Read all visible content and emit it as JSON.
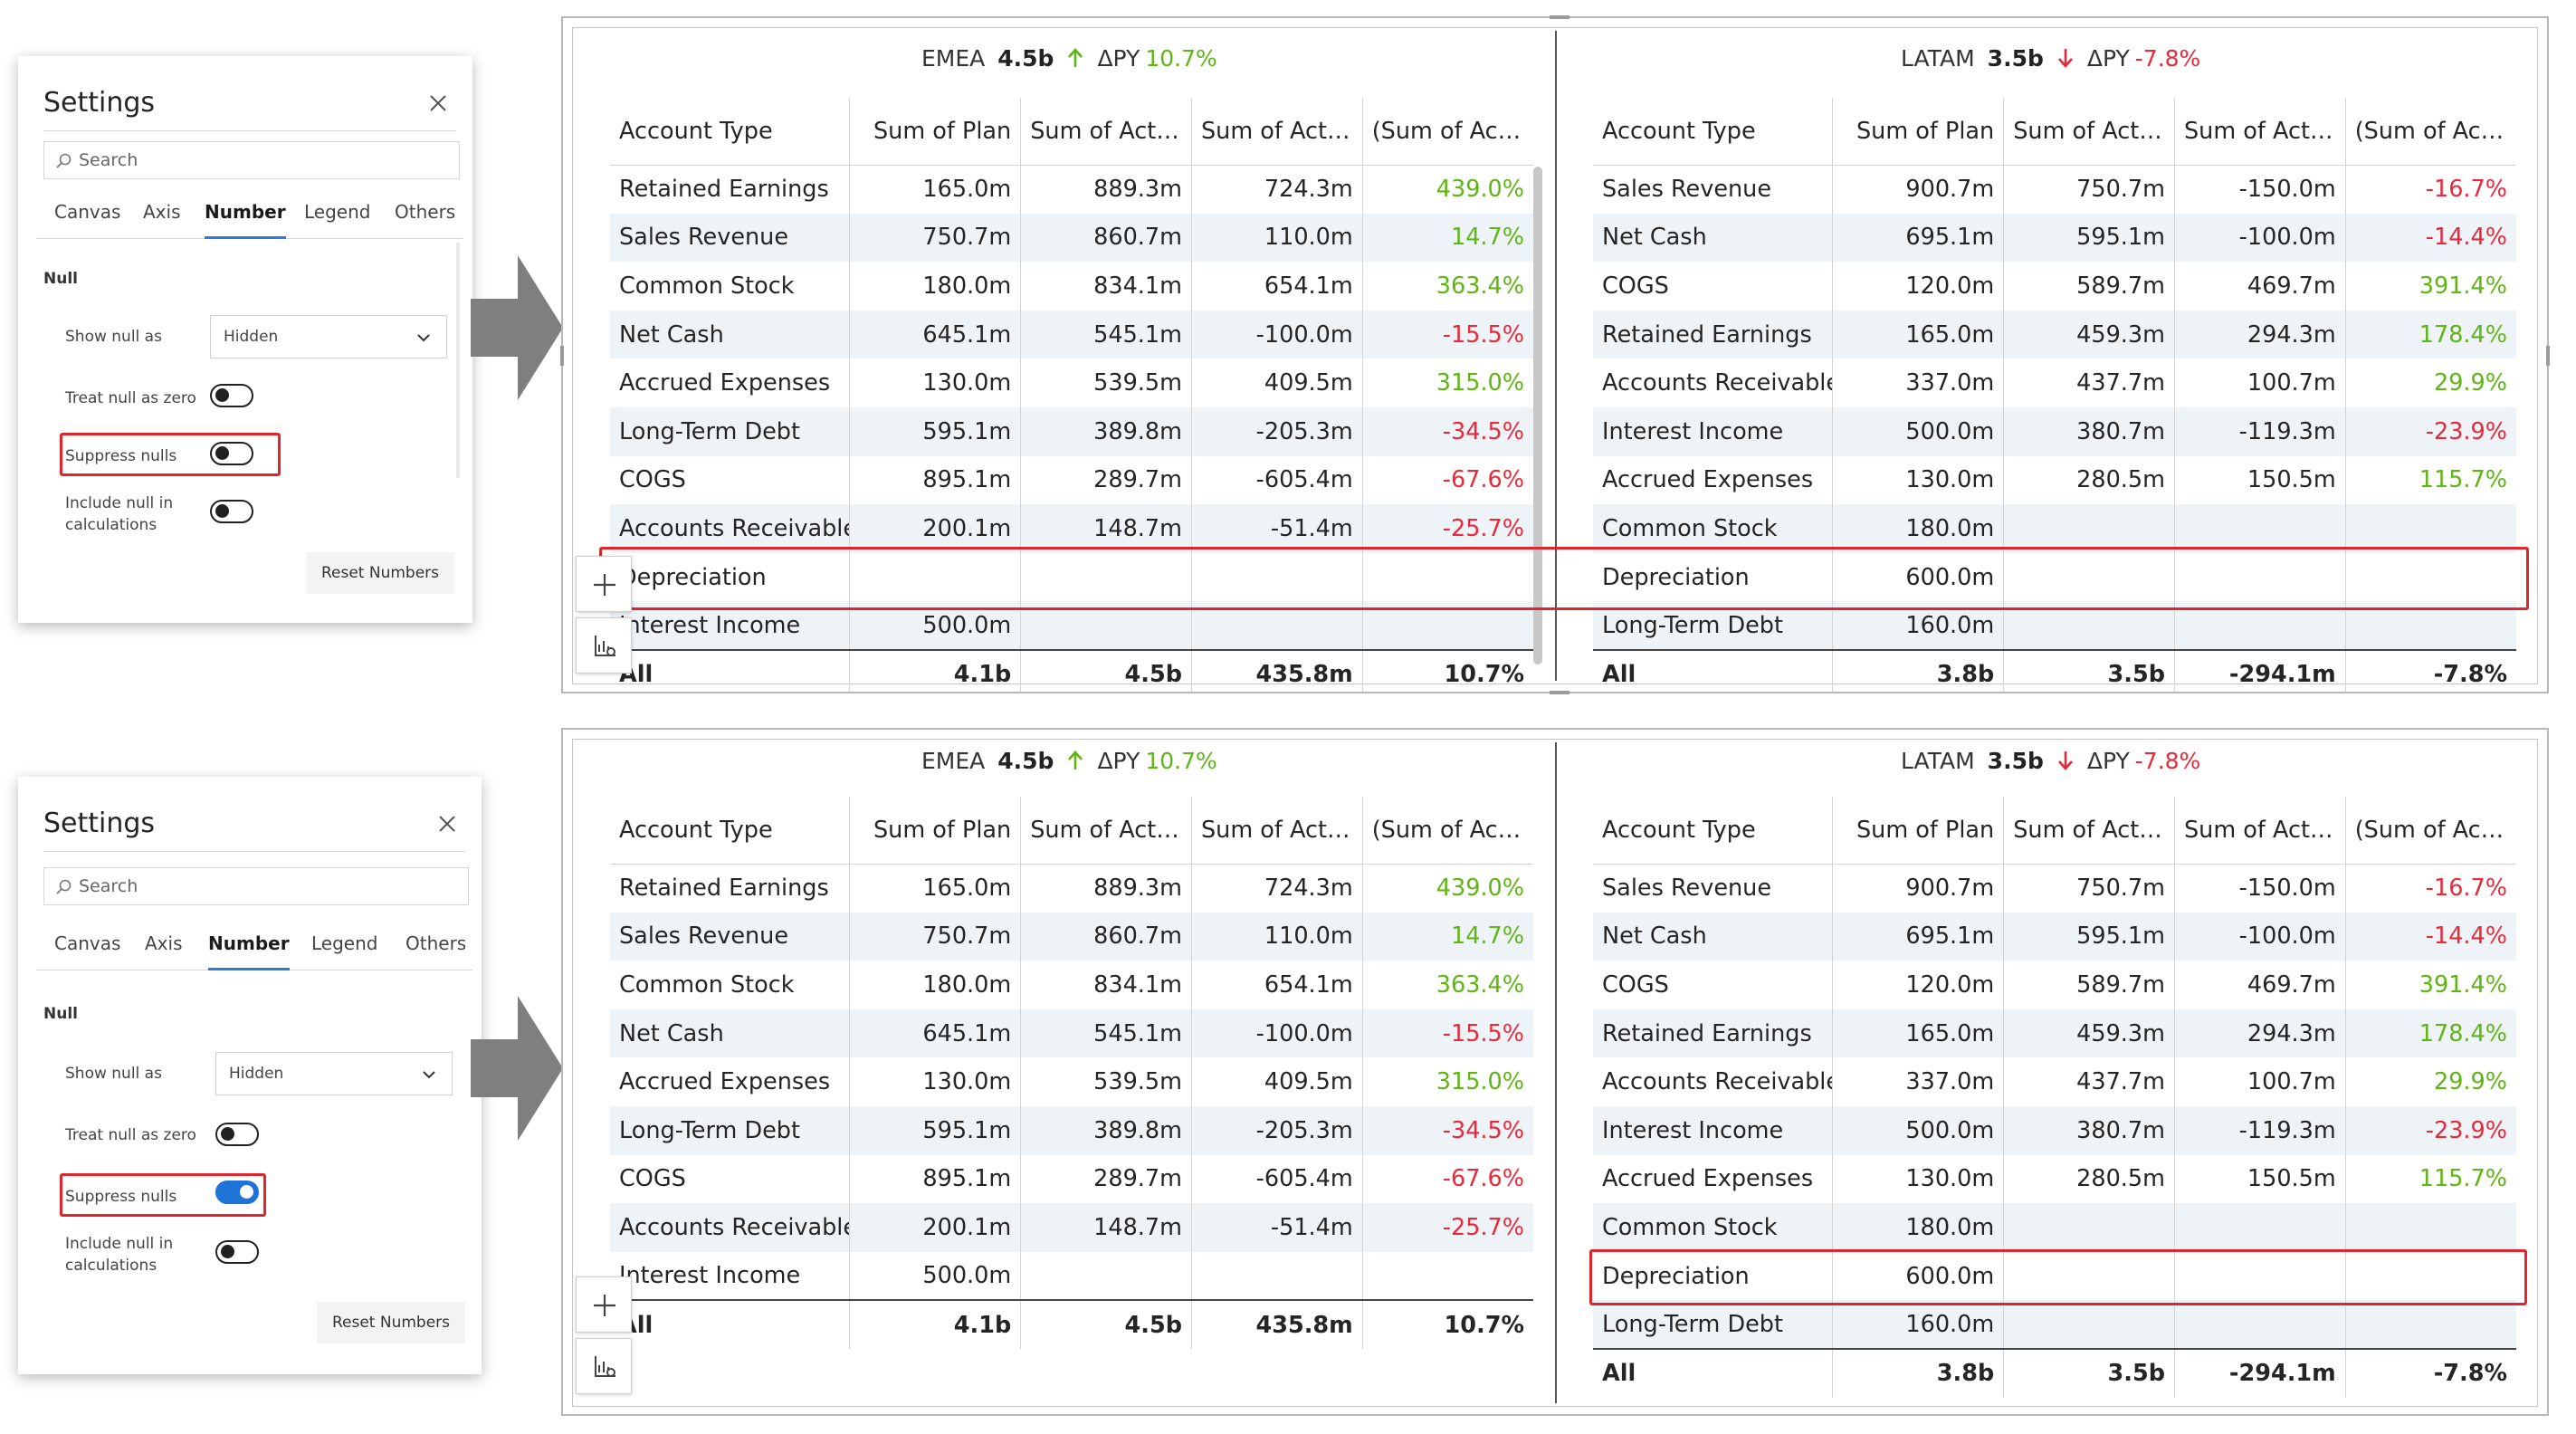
{
  "settings_panels": [
    {
      "title": "Settings",
      "search_placeholder": "Search",
      "tabs": [
        "Canvas",
        "Axis",
        "Number",
        "Legend",
        "Others"
      ],
      "active_tab": "Number",
      "section": "Null",
      "show_null_as_label": "Show null as",
      "show_null_as_value": "Hidden",
      "treat_null_label": "Treat null as zero",
      "treat_null_on": false,
      "suppress_nulls_label": "Suppress nulls",
      "suppress_nulls_on": false,
      "include_null_label_1": "Include null in",
      "include_null_label_2": "calculations",
      "include_null_on": false,
      "reset_label": "Reset Numbers"
    },
    {
      "title": "Settings",
      "search_placeholder": "Search",
      "tabs": [
        "Canvas",
        "Axis",
        "Number",
        "Legend",
        "Others"
      ],
      "active_tab": "Number",
      "section": "Null",
      "show_null_as_label": "Show null as",
      "show_null_as_value": "Hidden",
      "treat_null_label": "Treat null as zero",
      "treat_null_on": false,
      "suppress_nulls_label": "Suppress nulls",
      "suppress_nulls_on": true,
      "include_null_label_1": "Include null in",
      "include_null_label_2": "calculations",
      "include_null_on": false,
      "reset_label": "Reset Numbers"
    }
  ],
  "colors": {
    "positive": "#5eb513",
    "negative": "#e9283a",
    "toggle_on": "#1f73d6",
    "highlight_box": "#e0252b",
    "row_stripe": "#eef3f8"
  },
  "columns": [
    "Account Type",
    "Sum of Plan",
    "Sum of Actu...",
    "Sum of Actu...",
    "(Sum of Act..."
  ],
  "reports": [
    {
      "emea": {
        "region": "EMEA",
        "value": "4.5b",
        "dpy_label": "ΔPY",
        "delta": "10.7%",
        "direction": "up",
        "rows": [
          [
            "Retained Earnings",
            "165.0m",
            "889.3m",
            "724.3m",
            "439.0%"
          ],
          [
            "Sales Revenue",
            "750.7m",
            "860.7m",
            "110.0m",
            "14.7%"
          ],
          [
            "Common Stock",
            "180.0m",
            "834.1m",
            "654.1m",
            "363.4%"
          ],
          [
            "Net Cash",
            "645.1m",
            "545.1m",
            "-100.0m",
            "-15.5%"
          ],
          [
            "Accrued Expenses",
            "130.0m",
            "539.5m",
            "409.5m",
            "315.0%"
          ],
          [
            "Long-Term Debt",
            "595.1m",
            "389.8m",
            "-205.3m",
            "-34.5%"
          ],
          [
            "COGS",
            "895.1m",
            "289.7m",
            "-605.4m",
            "-67.6%"
          ],
          [
            "Accounts Receivable",
            "200.1m",
            "148.7m",
            "-51.4m",
            "-25.7%"
          ],
          [
            "Depreciation",
            "",
            "",
            "",
            ""
          ],
          [
            "Interest Income",
            "500.0m",
            "",
            "",
            ""
          ]
        ],
        "total": [
          "All",
          "4.1b",
          "4.5b",
          "435.8m",
          "10.7%"
        ]
      },
      "latam": {
        "region": "LATAM",
        "value": "3.5b",
        "dpy_label": "ΔPY",
        "delta": "-7.8%",
        "direction": "down",
        "rows": [
          [
            "Sales Revenue",
            "900.7m",
            "750.7m",
            "-150.0m",
            "-16.7%"
          ],
          [
            "Net Cash",
            "695.1m",
            "595.1m",
            "-100.0m",
            "-14.4%"
          ],
          [
            "COGS",
            "120.0m",
            "589.7m",
            "469.7m",
            "391.4%"
          ],
          [
            "Retained Earnings",
            "165.0m",
            "459.3m",
            "294.3m",
            "178.4%"
          ],
          [
            "Accounts Receivable",
            "337.0m",
            "437.7m",
            "100.7m",
            "29.9%"
          ],
          [
            "Interest Income",
            "500.0m",
            "380.7m",
            "-119.3m",
            "-23.9%"
          ],
          [
            "Accrued Expenses",
            "130.0m",
            "280.5m",
            "150.5m",
            "115.7%"
          ],
          [
            "Common Stock",
            "180.0m",
            "",
            "",
            ""
          ],
          [
            "Depreciation",
            "600.0m",
            "",
            "",
            ""
          ],
          [
            "Long-Term Debt",
            "160.0m",
            "",
            "",
            ""
          ]
        ],
        "total": [
          "All",
          "3.8b",
          "3.5b",
          "-294.1m",
          "-7.8%"
        ]
      }
    },
    {
      "emea": {
        "region": "EMEA",
        "value": "4.5b",
        "dpy_label": "ΔPY",
        "delta": "10.7%",
        "direction": "up",
        "rows": [
          [
            "Retained Earnings",
            "165.0m",
            "889.3m",
            "724.3m",
            "439.0%"
          ],
          [
            "Sales Revenue",
            "750.7m",
            "860.7m",
            "110.0m",
            "14.7%"
          ],
          [
            "Common Stock",
            "180.0m",
            "834.1m",
            "654.1m",
            "363.4%"
          ],
          [
            "Net Cash",
            "645.1m",
            "545.1m",
            "-100.0m",
            "-15.5%"
          ],
          [
            "Accrued Expenses",
            "130.0m",
            "539.5m",
            "409.5m",
            "315.0%"
          ],
          [
            "Long-Term Debt",
            "595.1m",
            "389.8m",
            "-205.3m",
            "-34.5%"
          ],
          [
            "COGS",
            "895.1m",
            "289.7m",
            "-605.4m",
            "-67.6%"
          ],
          [
            "Accounts Receivable",
            "200.1m",
            "148.7m",
            "-51.4m",
            "-25.7%"
          ],
          [
            "Interest Income",
            "500.0m",
            "",
            "",
            ""
          ]
        ],
        "total": [
          "All",
          "4.1b",
          "4.5b",
          "435.8m",
          "10.7%"
        ]
      },
      "latam": {
        "region": "LATAM",
        "value": "3.5b",
        "dpy_label": "ΔPY",
        "delta": "-7.8%",
        "direction": "down",
        "rows": [
          [
            "Sales Revenue",
            "900.7m",
            "750.7m",
            "-150.0m",
            "-16.7%"
          ],
          [
            "Net Cash",
            "695.1m",
            "595.1m",
            "-100.0m",
            "-14.4%"
          ],
          [
            "COGS",
            "120.0m",
            "589.7m",
            "469.7m",
            "391.4%"
          ],
          [
            "Retained Earnings",
            "165.0m",
            "459.3m",
            "294.3m",
            "178.4%"
          ],
          [
            "Accounts Receivable",
            "337.0m",
            "437.7m",
            "100.7m",
            "29.9%"
          ],
          [
            "Interest Income",
            "500.0m",
            "380.7m",
            "-119.3m",
            "-23.9%"
          ],
          [
            "Accrued Expenses",
            "130.0m",
            "280.5m",
            "150.5m",
            "115.7%"
          ],
          [
            "Common Stock",
            "180.0m",
            "",
            "",
            ""
          ],
          [
            "Depreciation",
            "600.0m",
            "",
            "",
            ""
          ],
          [
            "Long-Term Debt",
            "160.0m",
            "",
            "",
            ""
          ]
        ],
        "total": [
          "All",
          "3.8b",
          "3.5b",
          "-294.1m",
          "-7.8%"
        ]
      }
    }
  ]
}
